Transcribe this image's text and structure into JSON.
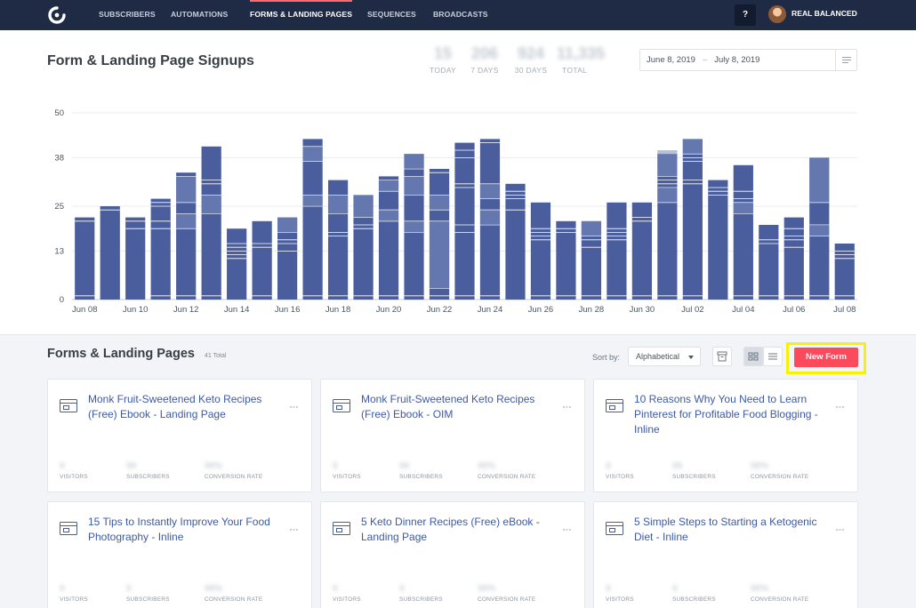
{
  "nav": {
    "items": [
      {
        "label": "SUBSCRIBERS",
        "active": false
      },
      {
        "label": "AUTOMATIONS",
        "active": false
      },
      {
        "label": "FORMS & LANDING PAGES",
        "active": true
      },
      {
        "label": "SEQUENCES",
        "active": false
      },
      {
        "label": "BROADCASTS",
        "active": false
      }
    ],
    "help_label": "?",
    "user_name": "REAL BALANCED",
    "logo_icon": "convertkit-logo-icon",
    "colors": {
      "background": "#1f2a44",
      "active_accent": "#fb6970"
    }
  },
  "signups": {
    "title": "Form & Landing Page Signups",
    "stats": [
      {
        "value": "15",
        "label": "TODAY"
      },
      {
        "value": "206",
        "label": "7 DAYS"
      },
      {
        "value": "924",
        "label": "30 DAYS"
      },
      {
        "value": "11,335",
        "label": "TOTAL"
      }
    ],
    "date_range": {
      "start": "June 8, 2019",
      "separator": "–",
      "end": "July 8, 2019",
      "menu_icon": "menu-lines-icon"
    }
  },
  "chart_data": {
    "type": "bar",
    "stacked": true,
    "ylim": [
      0,
      50
    ],
    "yticks": [
      0,
      13,
      25,
      38,
      50
    ],
    "xtick_labels": [
      "Jun 08",
      "Jun 10",
      "Jun 12",
      "Jun 14",
      "Jun 16",
      "Jun 18",
      "Jun 20",
      "Jun 22",
      "Jun 24",
      "Jun 26",
      "Jun 28",
      "Jun 30",
      "Jul 02",
      "Jul 04",
      "Jul 06",
      "Jul 08"
    ],
    "grid": true,
    "colors": {
      "bar": "#4a5e9e",
      "segment_light": "#7b8dbd",
      "separator": "#ffffff",
      "grid": "#e8ebef"
    },
    "dates": [
      "Jun 08",
      "Jun 09",
      "Jun 10",
      "Jun 11",
      "Jun 12",
      "Jun 13",
      "Jun 14",
      "Jun 15",
      "Jun 16",
      "Jun 17",
      "Jun 18",
      "Jun 19",
      "Jun 20",
      "Jun 21",
      "Jun 22",
      "Jun 23",
      "Jun 24",
      "Jun 25",
      "Jun 26",
      "Jun 27",
      "Jun 28",
      "Jun 29",
      "Jun 30",
      "Jul 01",
      "Jul 02",
      "Jul 03",
      "Jul 04",
      "Jul 05",
      "Jul 06",
      "Jul 07",
      "Jul 08"
    ],
    "totals": [
      22,
      25,
      22,
      27,
      34,
      41,
      19,
      21,
      22,
      43,
      32,
      28,
      33,
      39,
      35,
      42,
      43,
      31,
      26,
      21,
      21,
      26,
      26,
      39,
      43,
      32,
      36,
      20,
      22,
      38,
      15
    ],
    "segments": [
      [
        1,
        20,
        1
      ],
      [
        24,
        1
      ],
      [
        19,
        2,
        1
      ],
      [
        1,
        18,
        2,
        4,
        1,
        1
      ],
      [
        1,
        18,
        4,
        3,
        7,
        1
      ],
      [
        1,
        22,
        5,
        3,
        1,
        9
      ],
      [
        11,
        1,
        1,
        1,
        1,
        4
      ],
      [
        1,
        13,
        1,
        6
      ],
      [
        13,
        2,
        1,
        2,
        4
      ],
      [
        1,
        24,
        3,
        9,
        4,
        2
      ],
      [
        1,
        16,
        1,
        5,
        5,
        4
      ],
      [
        1,
        18,
        1,
        2,
        6
      ],
      [
        1,
        20,
        3,
        5,
        3,
        1,
        1
      ],
      [
        1,
        17,
        3,
        7,
        5,
        2,
        4
      ],
      [
        1,
        2,
        18,
        3,
        4,
        6,
        1
      ],
      [
        1,
        17,
        2,
        10,
        1,
        7,
        2,
        2
      ],
      [
        1,
        19,
        4,
        3,
        4,
        11,
        1
      ],
      [
        24,
        3,
        1,
        1,
        2
      ],
      [
        1,
        15,
        1,
        1,
        1,
        7
      ],
      [
        1,
        17,
        1,
        2
      ],
      [
        1,
        13,
        2,
        1,
        4
      ],
      [
        1,
        15,
        1,
        1,
        1,
        7
      ],
      [
        1,
        20,
        1,
        4
      ],
      [
        1,
        25,
        4,
        1,
        1,
        1,
        7
      ],
      [
        1,
        30,
        1,
        5,
        1,
        1,
        4
      ],
      [
        28,
        1,
        1,
        2
      ],
      [
        1,
        22,
        3,
        1,
        2,
        7
      ],
      [
        1,
        14,
        1,
        4
      ],
      [
        1,
        13,
        2,
        1,
        2,
        3
      ],
      [
        1,
        16,
        3,
        6,
        12
      ],
      [
        1,
        10,
        1,
        1,
        2
      ]
    ]
  },
  "forms": {
    "title": "Forms & Landing Pages",
    "count_label": "41 Total",
    "sort_label": "Sort by:",
    "sort_value": "Alphabetical",
    "new_button": "New Form",
    "new_button_color": "#fb4a5c",
    "highlight_color": "#f6f200",
    "icons": {
      "archive": "archive-icon",
      "grid": "grid-view-icon",
      "list": "list-view-icon"
    },
    "metric_labels": {
      "visitors": "VISITORS",
      "subscribers": "SUBSCRIBERS",
      "conversion": "CONVERSION RATE"
    },
    "cards": [
      {
        "name": "Monk Fruit-Sweetened Keto Recipes (Free) Ebook - Landing Page",
        "visitors": "9",
        "subscribers": "99",
        "conversion": "99%"
      },
      {
        "name": "Monk Fruit-Sweetened Keto Recipes (Free) Ebook - OIM",
        "visitors": "9",
        "subscribers": "99",
        "conversion": "99%"
      },
      {
        "name": "10 Reasons Why You Need to Learn Pinterest for Profitable Food Blogging - Inline",
        "visitors": "9",
        "subscribers": "99",
        "conversion": "99%"
      },
      {
        "name": "15 Tips to Instantly Improve Your Food Photography - Inline",
        "visitors": "9",
        "subscribers": "9",
        "conversion": "99%"
      },
      {
        "name": "5 Keto Dinner Recipes (Free) eBook - Landing Page",
        "visitors": "9",
        "subscribers": "9",
        "conversion": "99%"
      },
      {
        "name": "5 Simple Steps to Starting a Ketogenic Diet - Inline",
        "visitors": "9",
        "subscribers": "9",
        "conversion": "99%"
      }
    ]
  }
}
